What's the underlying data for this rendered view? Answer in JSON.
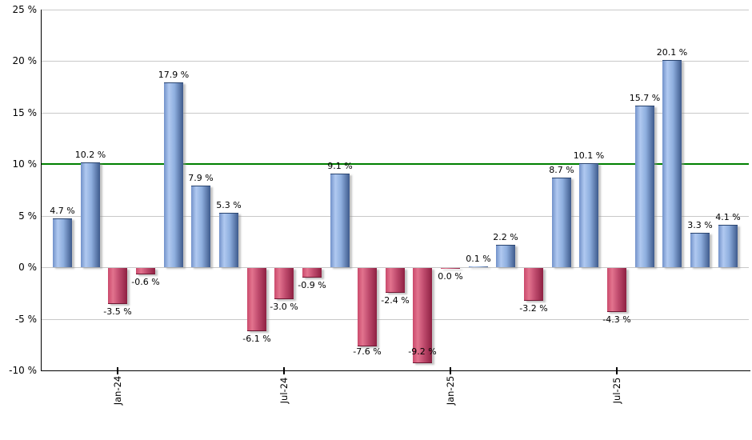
{
  "chart_data": {
    "type": "bar",
    "title": "",
    "description": "Monthly percentage returns bar chart with positive months in blue and negative months in red, horizontal reference line at 10%",
    "ylim": [
      -10,
      25
    ],
    "ytick_step": 5,
    "grid": true,
    "legend_position": "none",
    "y_tick_labels": [
      "25 %",
      "20 %",
      "15 %",
      "10 %",
      "5 %",
      "0 %",
      "-5 %",
      "-10 %"
    ],
    "x_tick_labels": [
      {
        "label": "Jan-24",
        "bar_index": 2
      },
      {
        "label": "Jul-24",
        "bar_index": 8
      },
      {
        "label": "Jan-25",
        "bar_index": 14
      },
      {
        "label": "Jul-25",
        "bar_index": 20
      }
    ],
    "reference_line": {
      "value": 10,
      "color": "#008000"
    },
    "bars": [
      {
        "value": 4.7,
        "label": "4.7 %",
        "negative": false
      },
      {
        "value": 10.2,
        "label": "10.2 %",
        "negative": false
      },
      {
        "value": -3.5,
        "label": "-3.5 %",
        "negative": true
      },
      {
        "value": -0.6,
        "label": "-0.6 %",
        "negative": true
      },
      {
        "value": 17.9,
        "label": "17.9 %",
        "negative": false
      },
      {
        "value": 7.9,
        "label": "7.9 %",
        "negative": false
      },
      {
        "value": 5.3,
        "label": "5.3 %",
        "negative": false
      },
      {
        "value": -6.1,
        "label": "-6.1 %",
        "negative": true
      },
      {
        "value": -3.0,
        "label": "-3.0 %",
        "negative": true
      },
      {
        "value": -0.9,
        "label": "-0.9 %",
        "negative": true
      },
      {
        "value": 9.1,
        "label": "9.1 %",
        "negative": false
      },
      {
        "value": -7.6,
        "label": "-7.6 %",
        "negative": true
      },
      {
        "value": -2.4,
        "label": "-2.4 %",
        "negative": true
      },
      {
        "value": -9.2,
        "label": "-9.2 %",
        "negative": true
      },
      {
        "value": 0.0,
        "label": "0.0 %",
        "negative": true
      },
      {
        "value": 0.1,
        "label": "0.1 %",
        "negative": false
      },
      {
        "value": 2.2,
        "label": "2.2 %",
        "negative": false
      },
      {
        "value": -3.2,
        "label": "-3.2 %",
        "negative": true
      },
      {
        "value": 8.7,
        "label": "8.7 %",
        "negative": false
      },
      {
        "value": 10.1,
        "label": "10.1 %",
        "negative": false
      },
      {
        "value": -4.3,
        "label": "-4.3 %",
        "negative": true
      },
      {
        "value": 15.7,
        "label": "15.7 %",
        "negative": false
      },
      {
        "value": 20.1,
        "label": "20.1 %",
        "negative": false
      },
      {
        "value": 3.3,
        "label": "3.3 %",
        "negative": false
      },
      {
        "value": 4.1,
        "label": "4.1 %",
        "negative": false
      }
    ],
    "colors": {
      "positive_gradient": [
        "#7292ca",
        "#b0c9f0",
        "#8fafdf",
        "#3e5a8c"
      ],
      "positive_cap": "#2a4570",
      "negative_gradient": [
        "#ca4a6c",
        "#e2738e",
        "#c24e70",
        "#8e2042"
      ],
      "negative_cap": "#701733",
      "reference_line": "#008000",
      "gridline": "#c9c9c9",
      "axis": "#000000",
      "label_text": "#000000",
      "background": "#ffffff"
    }
  }
}
